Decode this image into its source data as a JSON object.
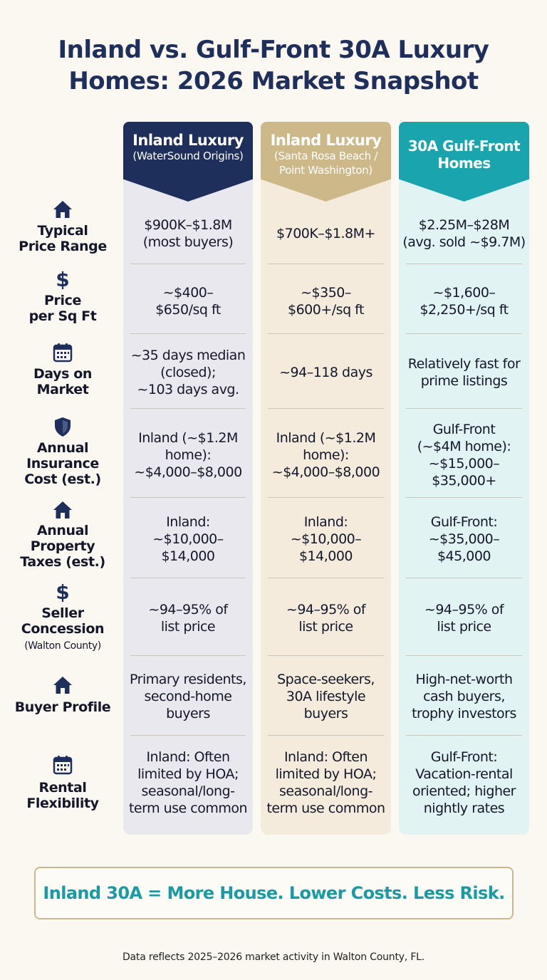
{
  "title": "Inland vs. Gulf-Front 30A Luxury Homes: 2026 Market Snapshot",
  "columns": [
    {
      "title": "Inland Luxury",
      "subtitle": "(WaterSound Origins)"
    },
    {
      "title": "Inland Luxury",
      "subtitle": "(Santa Rosa Beach / Point Washington)"
    },
    {
      "title": "30A Gulf-Front Homes",
      "subtitle": ""
    }
  ],
  "rows": [
    {
      "label": "Typical Price Range",
      "icon": "house-icon",
      "cells": [
        "$900K–$1.8M (most buyers)",
        "$700K–$1.8M+",
        "$2.25M–$28M (avg. sold ~$9.7M)"
      ]
    },
    {
      "label": "Price per Sq Ft",
      "icon": "dollar-icon",
      "cells": [
        "~$400– $650/sq ft",
        "~$350– $600+/sq ft",
        "~$1,600– $2,250+/sq ft"
      ]
    },
    {
      "label": "Days on Market",
      "icon": "calendar-icon",
      "cells": [
        "~35 days median (closed); ~103 days avg.",
        "~94–118 days",
        "Relatively fast for prime listings"
      ]
    },
    {
      "label": "Annual Insurance Cost (est.)",
      "icon": "shield-icon",
      "cells": [
        "Inland (~$1.2M home): ~$4,000–$8,000",
        "Inland (~$1.2M home): ~$4,000–$8,000",
        "Gulf-Front (~$4M home): ~$15,000– $35,000+"
      ]
    },
    {
      "label": "Annual Property Taxes (est.)",
      "icon": "house-icon",
      "cells": [
        "Inland: ~$10,000– $14,000",
        "Inland: ~$10,000– $14,000",
        "Gulf-Front: ~$35,000– $45,000"
      ]
    },
    {
      "label": "Seller Concession",
      "sublabel": "(Walton County)",
      "icon": "dollar-icon",
      "cells": [
        "~94–95% of list price",
        "~94–95% of list price",
        "~94–95% of list price"
      ]
    },
    {
      "label": "Buyer Profile",
      "icon": "house-icon",
      "cells": [
        "Primary residents, second-home buyers",
        "Space-seekers, 30A lifestyle buyers",
        "High-net-worth cash buyers, trophy investors"
      ]
    },
    {
      "label": "Rental Flexibility",
      "icon": "calendar-icon",
      "cells": [
        "Inland: Often limited by HOA; seasonal/long- term use common",
        "Inland: Often limited by HOA; seasonal/long- term use common",
        "Gulf-Front: Vacation-rental oriented; higher nightly rates"
      ]
    }
  ],
  "banner": "Inland 30A = More House. Lower Costs. Less Risk.",
  "footnote": "Data reflects 2025–2026 market activity in Walton County, FL.",
  "colors": {
    "navy": "#1f2f5b",
    "gold": "#cdb88a",
    "teal": "#1aa5ae"
  }
}
